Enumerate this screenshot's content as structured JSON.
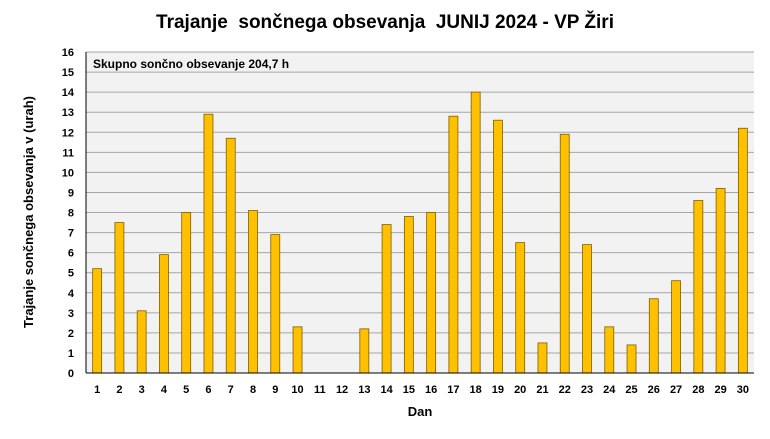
{
  "chart_data": {
    "type": "bar",
    "title": "Trajanje  sončnega obsevanja  JUNIJ 2024 - VP Žiri",
    "xlabel": "Dan",
    "ylabel": "Trajanje  sončnega obsevanja  v (urah)",
    "annotation": "Skupno sončno obsevanje 204,7 h",
    "categories": [
      "1",
      "2",
      "3",
      "4",
      "5",
      "6",
      "7",
      "8",
      "9",
      "10",
      "11",
      "12",
      "13",
      "14",
      "15",
      "16",
      "17",
      "18",
      "19",
      "20",
      "21",
      "22",
      "23",
      "24",
      "25",
      "26",
      "27",
      "28",
      "29",
      "30"
    ],
    "values": [
      5.2,
      7.5,
      3.1,
      5.9,
      8.0,
      12.9,
      11.7,
      8.1,
      6.9,
      2.3,
      0,
      0,
      2.2,
      7.4,
      7.8,
      8.0,
      12.8,
      14.0,
      12.6,
      6.5,
      1.5,
      11.9,
      6.4,
      2.3,
      1.4,
      3.7,
      4.6,
      8.6,
      9.2,
      12.2
    ],
    "ylim": [
      0,
      16
    ],
    "yticks": [
      0,
      1,
      2,
      3,
      4,
      5,
      6,
      7,
      8,
      9,
      10,
      11,
      12,
      13,
      14,
      15,
      16
    ],
    "grid": true,
    "colors": {
      "bar": "#FFC000",
      "bar_stroke": "#7F6000",
      "plot_bg": "#F2F2F2",
      "grid": "#A6A6A6"
    }
  }
}
